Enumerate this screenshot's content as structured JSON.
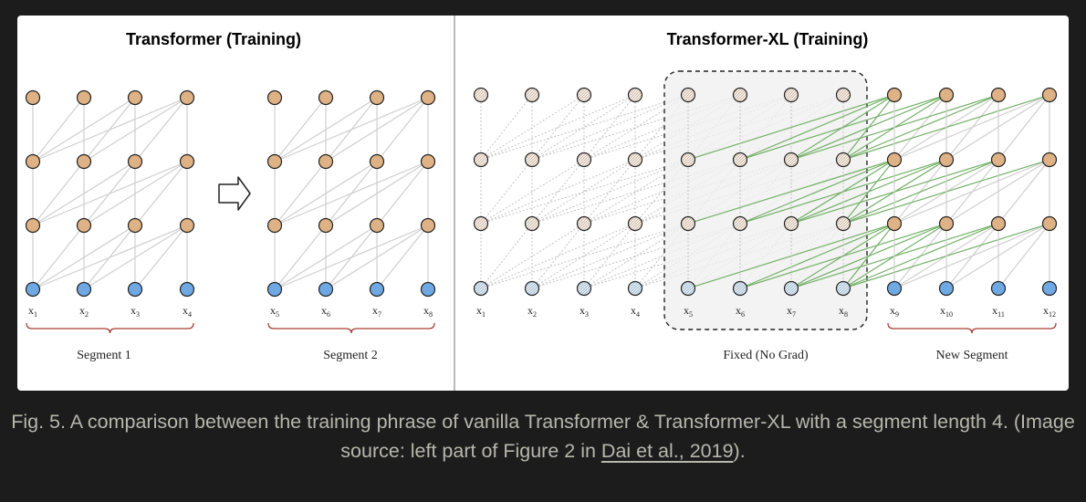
{
  "figure": {
    "left_title": "Transformer (Training)",
    "right_title": "Transformer-XL (Training)",
    "segment_labels": [
      "Segment 1",
      "Segment 2",
      "Fixed (No Grad)",
      "New Segment"
    ],
    "token_labels": [
      {
        "base": "x",
        "sub": "1"
      },
      {
        "base": "x",
        "sub": "2"
      },
      {
        "base": "x",
        "sub": "3"
      },
      {
        "base": "x",
        "sub": "4"
      },
      {
        "base": "x",
        "sub": "5"
      },
      {
        "base": "x",
        "sub": "6"
      },
      {
        "base": "x",
        "sub": "7"
      },
      {
        "base": "x",
        "sub": "8"
      },
      {
        "base": "x",
        "sub": "9"
      },
      {
        "base": "x",
        "sub": "10"
      },
      {
        "base": "x",
        "sub": "11"
      },
      {
        "base": "x",
        "sub": "12"
      }
    ],
    "colors": {
      "hidden_node": "#deb285",
      "input_node": "#6fa9e3",
      "faded_hidden_node": "#f8eadc",
      "faded_input_node": "#d6e8f7",
      "edge": "#cfcfcf",
      "grad_free_edge": "#74b068",
      "brace": "#a63d33",
      "fixed_region_fill": "#f0f0f0"
    }
  },
  "caption": {
    "text_before_link": "Fig. 5. A comparison between the training phrase of vanilla Transformer & Transformer-XL with a segment length 4. (Image source: left part of Figure 2 in ",
    "link_text": "Dai et al., 2019",
    "text_after_link": ")."
  }
}
